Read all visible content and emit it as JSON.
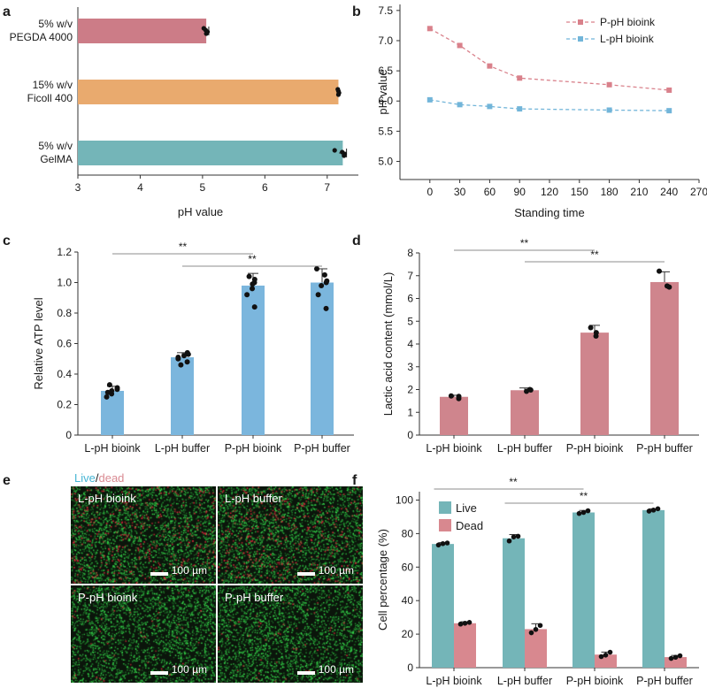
{
  "panel_labels": {
    "a": "a",
    "b": "b",
    "c": "c",
    "d": "d",
    "e": "e",
    "f": "f"
  },
  "colors": {
    "pegda": "#cc7c87",
    "ficoll": "#e9aa6e",
    "gelma": "#74b5b8",
    "p_line": "#d9818b",
    "l_line": "#72b5d9",
    "atp_bar": "#7bb6dd",
    "lactic_bar": "#cf858d",
    "live_bar": "#74b5b8",
    "dead_bar": "#d8888f",
    "live_text": "#46b5d4",
    "dead_text": "#d98a92"
  },
  "chart_data": [
    {
      "panel": "a",
      "type": "bar",
      "orientation": "horizontal",
      "categories": [
        [
          "5% w/v",
          "PEGDA 4000"
        ],
        [
          "15% w/v",
          "Ficoll 400"
        ],
        [
          "5% w/v",
          "GelMA"
        ]
      ],
      "values": [
        5.06,
        7.18,
        7.25
      ],
      "errors": [
        0.04,
        0.01,
        0.06
      ],
      "points": [
        [
          5.02,
          5.05,
          5.08,
          5.06
        ],
        [
          7.17,
          7.18,
          7.19,
          7.18
        ],
        [
          7.12,
          7.24,
          7.28,
          7.27
        ]
      ],
      "xlabel": "pH value",
      "xlim": [
        3,
        7.5
      ],
      "xticks": [
        "3",
        "4",
        "5",
        "6",
        "7"
      ]
    },
    {
      "panel": "b",
      "type": "line",
      "x": [
        0,
        30,
        60,
        90,
        180,
        240
      ],
      "series": [
        {
          "name": "P-pH bioink",
          "values": [
            7.2,
            6.92,
            6.58,
            6.38,
            6.27,
            6.18
          ]
        },
        {
          "name": "L-pH bioink",
          "values": [
            6.02,
            5.94,
            5.91,
            5.87,
            5.85,
            5.84
          ]
        }
      ],
      "xlabel": "Standing time",
      "ylabel": "pH value",
      "xlim": [
        -30,
        270
      ],
      "ylim": [
        4.7,
        7.6
      ],
      "xticks": [
        "0",
        "30",
        "60",
        "90",
        "120",
        "150",
        "180",
        "210",
        "240",
        "270"
      ],
      "yticks": [
        "5.0",
        "5.5",
        "6.0",
        "6.5",
        "7.0",
        "7.5"
      ],
      "legend": "top-right"
    },
    {
      "panel": "c",
      "type": "bar",
      "categories": [
        "L-pH bioink",
        "L-pH buffer",
        "P-pH bioink",
        "P-pH buffer"
      ],
      "values": [
        0.29,
        0.51,
        0.98,
        1.0
      ],
      "errors": [
        0.03,
        0.03,
        0.08,
        0.09
      ],
      "points": [
        [
          0.25,
          0.27,
          0.28,
          0.29,
          0.3,
          0.31,
          0.33
        ],
        [
          0.46,
          0.48,
          0.5,
          0.51,
          0.52,
          0.53,
          0.54
        ],
        [
          0.84,
          0.92,
          0.96,
          0.99,
          1.0,
          1.02,
          1.04
        ],
        [
          0.83,
          0.92,
          0.98,
          1.0,
          1.01,
          1.05,
          1.09
        ]
      ],
      "ylabel": "Relative ATP level",
      "ylim": [
        0,
        1.2
      ],
      "yticks": [
        "0",
        "0.2",
        "0.4",
        "0.6",
        "0.8",
        "1.0",
        "1.2"
      ],
      "significance": [
        {
          "from": 0,
          "to": 2,
          "label": "**"
        },
        {
          "from": 1,
          "to": 3,
          "label": "**"
        }
      ]
    },
    {
      "panel": "d",
      "type": "bar",
      "categories": [
        "L-pH bioink",
        "L-pH buffer",
        "P-pH bioink",
        "P-pH buffer"
      ],
      "values": [
        1.68,
        1.97,
        4.5,
        6.72
      ],
      "errors": [
        0.07,
        0.1,
        0.32,
        0.45
      ],
      "points": [
        [
          1.6,
          1.7,
          1.72
        ],
        [
          1.92,
          1.98,
          2.0
        ],
        [
          4.35,
          4.5,
          4.72
        ],
        [
          6.5,
          6.55,
          7.2
        ]
      ],
      "ylabel": "Lactic acid content (mmol/L)",
      "ylim": [
        0,
        8
      ],
      "yticks": [
        "0",
        "1",
        "2",
        "3",
        "4",
        "5",
        "6",
        "7",
        "8"
      ],
      "significance": [
        {
          "from": 0,
          "to": 2,
          "label": "**"
        },
        {
          "from": 1,
          "to": 3,
          "label": "**"
        }
      ]
    },
    {
      "panel": "f",
      "type": "bar",
      "categories": [
        "L-pH bioink",
        "L-pH buffer",
        "P-pH bioink",
        "P-pH buffer"
      ],
      "series": [
        {
          "name": "Live",
          "values": [
            73.8,
            77.2,
            92.6,
            94.0
          ],
          "errors": [
            0.8,
            2.2,
            1.2,
            0.8
          ],
          "points": [
            [
              73.2,
              74.0,
              74.4
            ],
            [
              75.6,
              78.0,
              78.4
            ],
            [
              92.0,
              92.6,
              93.6
            ],
            [
              93.4,
              94.0,
              94.8
            ]
          ]
        },
        {
          "name": "Dead",
          "values": [
            26.5,
            23.0,
            7.8,
            6.3
          ],
          "errors": [
            0.9,
            3.2,
            1.5,
            1.0
          ],
          "points": [
            [
              26.0,
              26.5,
              27.0
            ],
            [
              20.8,
              22.8,
              25.2
            ],
            [
              6.6,
              7.5,
              9.2
            ],
            [
              5.5,
              6.2,
              7.1
            ]
          ]
        }
      ],
      "ylabel": "Cell percentage (%)",
      "ylim": [
        0,
        105
      ],
      "yticks": [
        "0",
        "20",
        "40",
        "60",
        "80",
        "100"
      ],
      "legend": "top-left",
      "significance": [
        {
          "from": 0,
          "to": 2,
          "label": "**"
        },
        {
          "from": 1,
          "to": 3,
          "label": "**"
        }
      ]
    }
  ],
  "microscopy": {
    "legend_live": "Live",
    "legend_sep": "/",
    "legend_dead": "dead",
    "tiles": [
      {
        "label": "L-pH bioink",
        "scale": "100 µm",
        "red": "high"
      },
      {
        "label": "L-pH buffer",
        "scale": "100 µm",
        "red": "high"
      },
      {
        "label": "P-pH bioink",
        "scale": "100 µm",
        "red": "low"
      },
      {
        "label": "P-pH buffer",
        "scale": "100 µm",
        "red": "low"
      }
    ]
  }
}
